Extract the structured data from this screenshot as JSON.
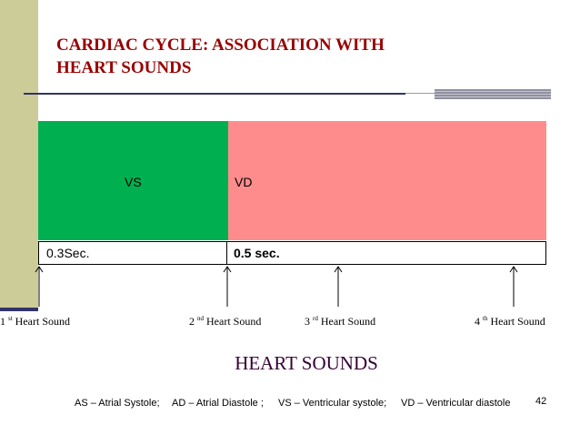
{
  "slide": {
    "title_line1": "CARDIAC CYCLE: ASSOCIATION WITH",
    "title_line2": "HEART SOUNDS",
    "heading": "HEART SOUNDS",
    "page_number": "42",
    "colors": {
      "title": "#990000",
      "vs_block": "#00b050",
      "vd_block": "#ff8c8c",
      "sidebar": "#cccc99",
      "heading": "#330033"
    }
  },
  "phases": {
    "vs_label": "VS",
    "vd_label": "VD",
    "vs_duration": "0.3Sec.",
    "vd_duration": "0.5 sec."
  },
  "heart_sounds": [
    {
      "num": "1",
      "suffix": "st",
      "label": "Heart Sound"
    },
    {
      "num": "2",
      "suffix": "nd",
      "label": "Heart Sound"
    },
    {
      "num": "3",
      "suffix": "rd",
      "label": "Heart Sound"
    },
    {
      "num": "4",
      "suffix": "th",
      "label": "Heart Sound"
    }
  ],
  "legend": [
    "AS – Atrial Systole;",
    "AD – Atrial Diastole ;",
    "VS – Ventricular systole;",
    "VD – Ventricular diastole"
  ]
}
